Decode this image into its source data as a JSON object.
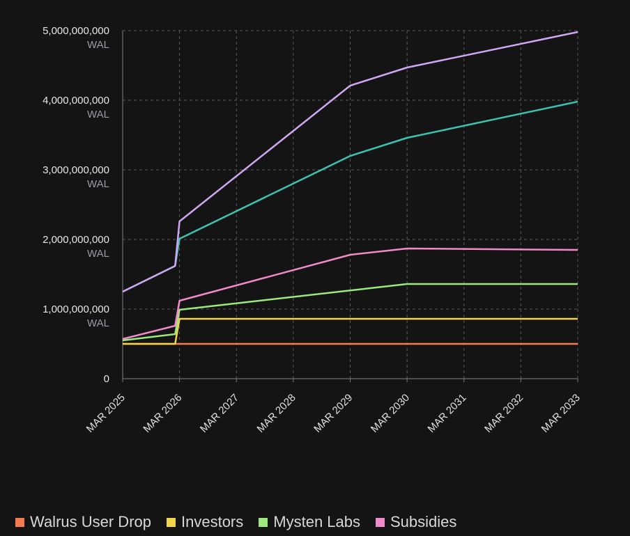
{
  "chart_data": {
    "type": "line",
    "x": [
      "MAR 2025",
      "MAR 2026",
      "MAR 2027",
      "MAR 2028",
      "MAR 2029",
      "MAR 2030",
      "MAR 2031",
      "MAR 2032",
      "MAR 2033"
    ],
    "y_ticks": [
      {
        "value": "0",
        "unit": ""
      },
      {
        "value": "1,000,000,000",
        "unit": "WAL"
      },
      {
        "value": "2,000,000,000",
        "unit": "WAL"
      },
      {
        "value": "3,000,000,000",
        "unit": "WAL"
      },
      {
        "value": "4,000,000,000",
        "unit": "WAL"
      },
      {
        "value": "5,000,000,000",
        "unit": "WAL"
      }
    ],
    "ylim": [
      0,
      5000000000
    ],
    "grid": true,
    "legend_position": "bottom",
    "series": [
      {
        "name": "Walrus User Drop",
        "color": "#f47b4d",
        "points": [
          {
            "x": "2025-03",
            "y": 500000000
          },
          {
            "x": "2033-03",
            "y": 500000000
          }
        ]
      },
      {
        "name": "Investors",
        "color": "#f2d54a",
        "points": [
          {
            "x": "2025-03",
            "y": 500000000
          },
          {
            "x": "2026-02",
            "y": 500000000
          },
          {
            "x": "2026-03",
            "y": 860000000
          },
          {
            "x": "2033-03",
            "y": 860000000
          }
        ]
      },
      {
        "name": "Mysten Labs",
        "color": "#9be87e",
        "points": [
          {
            "x": "2025-03",
            "y": 550000000
          },
          {
            "x": "2026-02",
            "y": 640000000
          },
          {
            "x": "2026-03",
            "y": 990000000
          },
          {
            "x": "2030-03",
            "y": 1360000000
          },
          {
            "x": "2033-03",
            "y": 1360000000
          }
        ]
      },
      {
        "name": "Subsidies",
        "color": "#f08ac8",
        "points": [
          {
            "x": "2025-03",
            "y": 570000000
          },
          {
            "x": "2026-02",
            "y": 760000000
          },
          {
            "x": "2026-03",
            "y": 1120000000
          },
          {
            "x": "2029-03",
            "y": 1780000000
          },
          {
            "x": "2030-03",
            "y": 1870000000
          },
          {
            "x": "2033-03",
            "y": 1850000000
          }
        ]
      },
      {
        "color": "#3cc2b0",
        "points": [
          {
            "x": "2025-03",
            "y": 1250000000
          },
          {
            "x": "2026-02",
            "y": 1620000000
          },
          {
            "x": "2026-03",
            "y": 2010000000
          },
          {
            "x": "2029-03",
            "y": 3200000000
          },
          {
            "x": "2030-03",
            "y": 3460000000
          },
          {
            "x": "2033-03",
            "y": 3980000000
          }
        ]
      },
      {
        "color": "#cfa7f2",
        "points": [
          {
            "x": "2025-03",
            "y": 1250000000
          },
          {
            "x": "2026-02",
            "y": 1620000000
          },
          {
            "x": "2026-03",
            "y": 2260000000
          },
          {
            "x": "2029-03",
            "y": 4210000000
          },
          {
            "x": "2030-03",
            "y": 4470000000
          },
          {
            "x": "2033-03",
            "y": 4980000000
          }
        ]
      }
    ]
  },
  "legend": [
    {
      "label": "Walrus User Drop",
      "color": "#f47b4d"
    },
    {
      "label": "Investors",
      "color": "#f2d54a"
    },
    {
      "label": "Mysten Labs",
      "color": "#9be87e"
    },
    {
      "label": "Subsidies",
      "color": "#f08ac8"
    }
  ]
}
